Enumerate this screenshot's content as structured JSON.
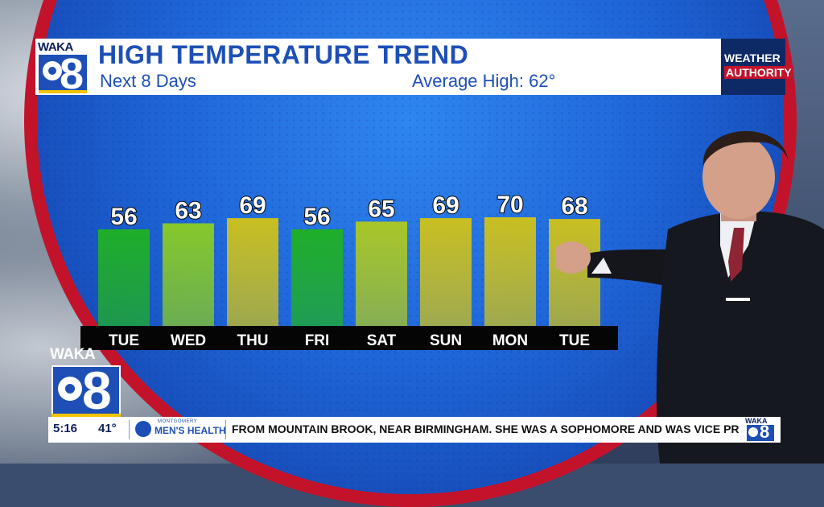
{
  "header": {
    "station_logo_text": "WAKA",
    "station_number": "8",
    "title": "HIGH TEMPERATURE TREND",
    "subtitle": "Next 8 Days",
    "average": "Average High: 62°",
    "badge_line1": "WEATHER",
    "badge_line2": "AUTHORITY"
  },
  "chart_data": {
    "type": "bar",
    "title": "HIGH TEMPERATURE TREND",
    "categories": [
      "TUE",
      "WED",
      "THU",
      "FRI",
      "SAT",
      "SUN",
      "MON",
      "TUE"
    ],
    "values": [
      56,
      63,
      69,
      56,
      65,
      69,
      70,
      68
    ],
    "colors": [
      "#1fae2a",
      "#86c82b",
      "#c9bf22",
      "#1fae2a",
      "#a8c628",
      "#c9bf22",
      "#c9bf22",
      "#c9bf22"
    ]
  },
  "big_logo": {
    "text": "WAKA",
    "number": "8"
  },
  "ticker": {
    "time": "5:16",
    "temp": "41°",
    "sponsor_small": "MONTGOMERY",
    "sponsor": "MEN'S HEALTH",
    "news": "FROM MOUNTAIN BROOK, NEAR BIRMINGHAM. SHE WAS A SOPHOMORE AND WAS VICE PRESI",
    "logo_text": "WAKA",
    "logo_number": "8"
  }
}
